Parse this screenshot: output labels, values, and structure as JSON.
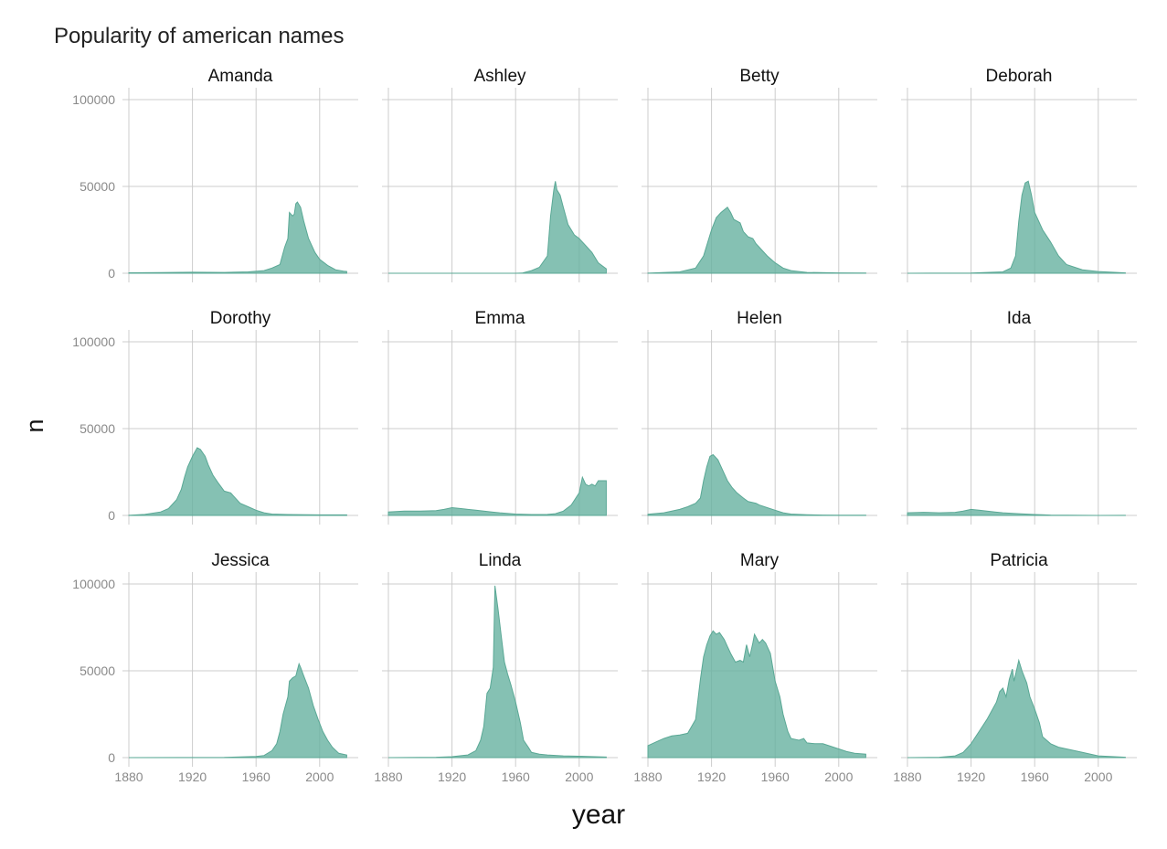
{
  "chart_data": {
    "type": "area",
    "title": "Popularity of american names",
    "xlabel": "year",
    "ylabel": "n",
    "xlim": [
      1880,
      2017
    ],
    "ylim": [
      0,
      100000
    ],
    "x_ticks": [
      1880,
      1920,
      1960,
      2000
    ],
    "y_ticks": [
      0,
      50000,
      100000
    ],
    "grid": true,
    "colors": {
      "area_fill": "#66b2a0",
      "area_stroke": "#5aa895",
      "grid": "#cccccc"
    },
    "facets": [
      {
        "name": "Amanda",
        "points": [
          [
            1880,
            241
          ],
          [
            1900,
            400
          ],
          [
            1920,
            600
          ],
          [
            1940,
            450
          ],
          [
            1955,
            800
          ],
          [
            1965,
            1500
          ],
          [
            1970,
            3000
          ],
          [
            1975,
            5000
          ],
          [
            1978,
            15000
          ],
          [
            1980,
            20000
          ],
          [
            1981,
            35000
          ],
          [
            1983,
            33000
          ],
          [
            1984,
            34000
          ],
          [
            1985,
            40000
          ],
          [
            1986,
            41000
          ],
          [
            1988,
            38000
          ],
          [
            1990,
            30000
          ],
          [
            1993,
            20000
          ],
          [
            1997,
            12000
          ],
          [
            2000,
            8000
          ],
          [
            2005,
            4500
          ],
          [
            2010,
            2000
          ],
          [
            2015,
            1200
          ],
          [
            2017,
            1000
          ]
        ]
      },
      {
        "name": "Ashley",
        "points": [
          [
            1880,
            0
          ],
          [
            1960,
            0
          ],
          [
            1964,
            100
          ],
          [
            1970,
            1500
          ],
          [
            1975,
            3500
          ],
          [
            1980,
            10000
          ],
          [
            1982,
            33000
          ],
          [
            1984,
            48000
          ],
          [
            1985,
            53000
          ],
          [
            1986,
            48000
          ],
          [
            1988,
            45000
          ],
          [
            1990,
            38000
          ],
          [
            1993,
            28000
          ],
          [
            1997,
            22000
          ],
          [
            2000,
            20000
          ],
          [
            2005,
            15000
          ],
          [
            2008,
            12000
          ],
          [
            2012,
            6000
          ],
          [
            2017,
            2600
          ]
        ]
      },
      {
        "name": "Betty",
        "points": [
          [
            1880,
            100
          ],
          [
            1900,
            800
          ],
          [
            1910,
            3000
          ],
          [
            1915,
            10000
          ],
          [
            1920,
            25000
          ],
          [
            1923,
            32000
          ],
          [
            1926,
            35000
          ],
          [
            1930,
            38000
          ],
          [
            1932,
            35000
          ],
          [
            1934,
            31000
          ],
          [
            1938,
            29000
          ],
          [
            1940,
            24000
          ],
          [
            1943,
            21000
          ],
          [
            1946,
            20000
          ],
          [
            1948,
            17000
          ],
          [
            1950,
            15000
          ],
          [
            1955,
            10000
          ],
          [
            1960,
            6000
          ],
          [
            1965,
            3000
          ],
          [
            1970,
            1500
          ],
          [
            1980,
            500
          ],
          [
            2000,
            200
          ],
          [
            2017,
            100
          ]
        ]
      },
      {
        "name": "Deborah",
        "points": [
          [
            1880,
            0
          ],
          [
            1920,
            100
          ],
          [
            1940,
            800
          ],
          [
            1945,
            3000
          ],
          [
            1948,
            10000
          ],
          [
            1950,
            30000
          ],
          [
            1952,
            45000
          ],
          [
            1954,
            52000
          ],
          [
            1956,
            53000
          ],
          [
            1958,
            45000
          ],
          [
            1960,
            35000
          ],
          [
            1965,
            25000
          ],
          [
            1970,
            18000
          ],
          [
            1975,
            10000
          ],
          [
            1980,
            5000
          ],
          [
            1990,
            2000
          ],
          [
            2000,
            1000
          ],
          [
            2017,
            200
          ]
        ]
      },
      {
        "name": "Dorothy",
        "points": [
          [
            1880,
            100
          ],
          [
            1890,
            600
          ],
          [
            1900,
            2000
          ],
          [
            1905,
            4000
          ],
          [
            1910,
            9000
          ],
          [
            1913,
            15000
          ],
          [
            1915,
            22000
          ],
          [
            1917,
            28000
          ],
          [
            1920,
            34000
          ],
          [
            1923,
            39000
          ],
          [
            1925,
            38000
          ],
          [
            1928,
            34000
          ],
          [
            1930,
            29000
          ],
          [
            1933,
            23000
          ],
          [
            1936,
            19000
          ],
          [
            1940,
            14000
          ],
          [
            1944,
            13000
          ],
          [
            1948,
            9000
          ],
          [
            1950,
            7000
          ],
          [
            1955,
            5000
          ],
          [
            1960,
            3000
          ],
          [
            1965,
            1500
          ],
          [
            1970,
            800
          ],
          [
            1980,
            500
          ],
          [
            2000,
            300
          ],
          [
            2017,
            300
          ]
        ]
      },
      {
        "name": "Emma",
        "points": [
          [
            1880,
            2000
          ],
          [
            1890,
            2500
          ],
          [
            1900,
            2500
          ],
          [
            1910,
            2800
          ],
          [
            1915,
            3500
          ],
          [
            1920,
            4500
          ],
          [
            1925,
            4000
          ],
          [
            1930,
            3500
          ],
          [
            1935,
            3000
          ],
          [
            1940,
            2500
          ],
          [
            1945,
            2000
          ],
          [
            1950,
            1500
          ],
          [
            1960,
            800
          ],
          [
            1970,
            500
          ],
          [
            1980,
            600
          ],
          [
            1985,
            1000
          ],
          [
            1990,
            2500
          ],
          [
            1995,
            6000
          ],
          [
            2000,
            13000
          ],
          [
            2002,
            22000
          ],
          [
            2004,
            18000
          ],
          [
            2006,
            17000
          ],
          [
            2008,
            18000
          ],
          [
            2010,
            17000
          ],
          [
            2012,
            20000
          ],
          [
            2014,
            20000
          ],
          [
            2017,
            20000
          ]
        ]
      },
      {
        "name": "Helen",
        "points": [
          [
            1880,
            700
          ],
          [
            1890,
            1500
          ],
          [
            1900,
            3500
          ],
          [
            1905,
            5000
          ],
          [
            1910,
            7000
          ],
          [
            1913,
            10000
          ],
          [
            1915,
            20000
          ],
          [
            1917,
            28000
          ],
          [
            1919,
            34000
          ],
          [
            1921,
            35000
          ],
          [
            1924,
            32000
          ],
          [
            1927,
            26000
          ],
          [
            1930,
            20000
          ],
          [
            1933,
            16000
          ],
          [
            1936,
            13000
          ],
          [
            1940,
            10000
          ],
          [
            1943,
            8000
          ],
          [
            1948,
            7000
          ],
          [
            1950,
            6000
          ],
          [
            1955,
            4500
          ],
          [
            1960,
            3000
          ],
          [
            1965,
            1500
          ],
          [
            1970,
            800
          ],
          [
            1980,
            400
          ],
          [
            1990,
            200
          ],
          [
            2000,
            150
          ],
          [
            2017,
            100
          ]
        ]
      },
      {
        "name": "Ida",
        "points": [
          [
            1880,
            1500
          ],
          [
            1890,
            1800
          ],
          [
            1900,
            1500
          ],
          [
            1910,
            1800
          ],
          [
            1915,
            2500
          ],
          [
            1920,
            3500
          ],
          [
            1925,
            3000
          ],
          [
            1930,
            2500
          ],
          [
            1935,
            2000
          ],
          [
            1940,
            1500
          ],
          [
            1950,
            1000
          ],
          [
            1960,
            500
          ],
          [
            1970,
            200
          ],
          [
            2000,
            0
          ],
          [
            2017,
            50
          ]
        ]
      },
      {
        "name": "Jessica",
        "points": [
          [
            1880,
            0
          ],
          [
            1940,
            100
          ],
          [
            1950,
            400
          ],
          [
            1960,
            700
          ],
          [
            1965,
            1200
          ],
          [
            1970,
            4000
          ],
          [
            1973,
            8000
          ],
          [
            1975,
            15000
          ],
          [
            1977,
            25000
          ],
          [
            1980,
            35000
          ],
          [
            1981,
            44000
          ],
          [
            1983,
            46000
          ],
          [
            1985,
            47000
          ],
          [
            1987,
            54000
          ],
          [
            1988,
            52000
          ],
          [
            1990,
            47000
          ],
          [
            1993,
            40000
          ],
          [
            1996,
            30000
          ],
          [
            1999,
            22000
          ],
          [
            2002,
            15000
          ],
          [
            2005,
            10000
          ],
          [
            2008,
            6000
          ],
          [
            2012,
            2500
          ],
          [
            2017,
            1500
          ]
        ]
      },
      {
        "name": "Linda",
        "points": [
          [
            1880,
            0
          ],
          [
            1910,
            200
          ],
          [
            1920,
            500
          ],
          [
            1930,
            1500
          ],
          [
            1935,
            4000
          ],
          [
            1938,
            10000
          ],
          [
            1940,
            18000
          ],
          [
            1942,
            37000
          ],
          [
            1944,
            40000
          ],
          [
            1946,
            52000
          ],
          [
            1947,
            99000
          ],
          [
            1949,
            85000
          ],
          [
            1951,
            70000
          ],
          [
            1953,
            55000
          ],
          [
            1955,
            48000
          ],
          [
            1957,
            42000
          ],
          [
            1960,
            32000
          ],
          [
            1963,
            20000
          ],
          [
            1965,
            10000
          ],
          [
            1968,
            6000
          ],
          [
            1970,
            3000
          ],
          [
            1975,
            2000
          ],
          [
            1980,
            1500
          ],
          [
            1990,
            1000
          ],
          [
            2000,
            800
          ],
          [
            2010,
            500
          ],
          [
            2017,
            300
          ]
        ]
      },
      {
        "name": "Mary",
        "points": [
          [
            1880,
            6900
          ],
          [
            1885,
            9000
          ],
          [
            1890,
            11000
          ],
          [
            1895,
            12500
          ],
          [
            1900,
            13000
          ],
          [
            1905,
            14000
          ],
          [
            1910,
            22000
          ],
          [
            1913,
            45000
          ],
          [
            1915,
            58000
          ],
          [
            1917,
            65000
          ],
          [
            1919,
            70000
          ],
          [
            1921,
            73000
          ],
          [
            1923,
            71000
          ],
          [
            1925,
            72000
          ],
          [
            1928,
            68000
          ],
          [
            1930,
            64000
          ],
          [
            1932,
            60000
          ],
          [
            1935,
            55000
          ],
          [
            1938,
            56000
          ],
          [
            1940,
            55000
          ],
          [
            1942,
            65000
          ],
          [
            1944,
            58000
          ],
          [
            1946,
            66000
          ],
          [
            1947,
            71000
          ],
          [
            1950,
            66000
          ],
          [
            1952,
            68000
          ],
          [
            1954,
            66000
          ],
          [
            1957,
            60000
          ],
          [
            1960,
            44000
          ],
          [
            1963,
            35000
          ],
          [
            1965,
            25000
          ],
          [
            1968,
            15000
          ],
          [
            1970,
            11000
          ],
          [
            1975,
            10000
          ],
          [
            1978,
            11000
          ],
          [
            1980,
            8500
          ],
          [
            1985,
            8000
          ],
          [
            1990,
            8000
          ],
          [
            1995,
            6500
          ],
          [
            2000,
            5000
          ],
          [
            2005,
            3500
          ],
          [
            2010,
            2500
          ],
          [
            2017,
            2000
          ]
        ]
      },
      {
        "name": "Patricia",
        "points": [
          [
            1880,
            0
          ],
          [
            1900,
            200
          ],
          [
            1910,
            1000
          ],
          [
            1915,
            3000
          ],
          [
            1920,
            8000
          ],
          [
            1925,
            15000
          ],
          [
            1930,
            22000
          ],
          [
            1933,
            27000
          ],
          [
            1936,
            32000
          ],
          [
            1938,
            38000
          ],
          [
            1940,
            40000
          ],
          [
            1942,
            35000
          ],
          [
            1944,
            45000
          ],
          [
            1946,
            51000
          ],
          [
            1947,
            44000
          ],
          [
            1949,
            52000
          ],
          [
            1950,
            56000
          ],
          [
            1952,
            50000
          ],
          [
            1955,
            43000
          ],
          [
            1957,
            35000
          ],
          [
            1960,
            28000
          ],
          [
            1963,
            20000
          ],
          [
            1965,
            12000
          ],
          [
            1970,
            8000
          ],
          [
            1975,
            6000
          ],
          [
            1980,
            5000
          ],
          [
            1985,
            4000
          ],
          [
            1990,
            3000
          ],
          [
            2000,
            1000
          ],
          [
            2017,
            200
          ]
        ]
      }
    ]
  }
}
